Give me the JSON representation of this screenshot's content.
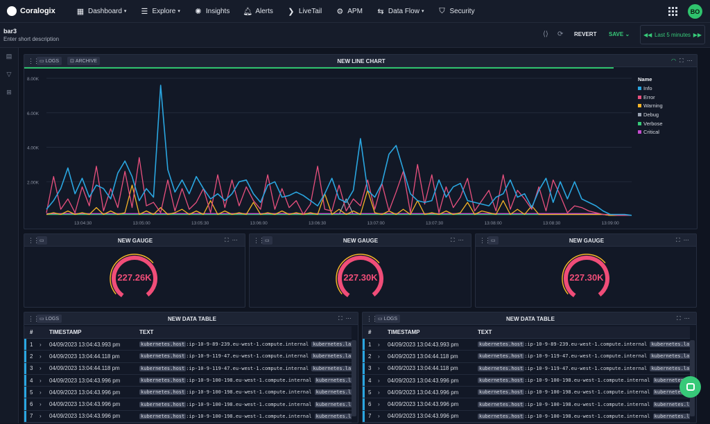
{
  "app": {
    "logo": "Coralogix"
  },
  "nav": [
    {
      "label": "Dashboard",
      "icon": "dashboard-icon",
      "caret": true
    },
    {
      "label": "Explore",
      "icon": "explore-icon",
      "caret": true
    },
    {
      "label": "Insights",
      "icon": "insights-icon",
      "caret": false
    },
    {
      "label": "Alerts",
      "icon": "bell-icon",
      "caret": false
    },
    {
      "label": "LiveTail",
      "icon": "livetail-icon",
      "caret": false
    },
    {
      "label": "APM",
      "icon": "apm-icon",
      "caret": false
    },
    {
      "label": "Data Flow",
      "icon": "dataflow-icon",
      "caret": true
    },
    {
      "label": "Security",
      "icon": "shield-icon",
      "caret": false
    }
  ],
  "user": {
    "initials": "BO"
  },
  "dashboard": {
    "title": "bar3",
    "description": "Enter short description"
  },
  "toolbar": {
    "revert": "REVERT",
    "save": "SAVE",
    "time_range": "Last 5 minutes"
  },
  "line_chart": {
    "title": "NEW LINE CHART",
    "tags": [
      "LOGS",
      "ARCHIVE"
    ],
    "chart_data": {
      "type": "line",
      "ylim": [
        0,
        8000
      ],
      "yticks": [
        "8.00K",
        "6.00K",
        "4.00K",
        "2.00K"
      ],
      "xticks": [
        "13:04:30",
        "13:05:00",
        "13:05:30",
        "13:06:00",
        "13:06:30",
        "13:07:00",
        "13:07:30",
        "13:08:00",
        "13:08:30",
        "13:09:00"
      ],
      "legend_title": "Name",
      "legend_position": "right",
      "grid": true,
      "series": [
        {
          "name": "Info",
          "color": "#2aa6e0",
          "values": [
            400,
            900,
            1600,
            2800,
            1300,
            2200,
            1100,
            1800,
            1600,
            1000,
            2500,
            3200,
            2300,
            900,
            1600,
            1100,
            7600,
            2700,
            1400,
            2100,
            1300,
            2300,
            1600,
            1000,
            1300,
            900,
            1300,
            2000,
            2100,
            1300,
            800,
            1800,
            2000,
            1100,
            1200,
            1400,
            1200,
            900,
            600,
            1300,
            2200,
            1000,
            800,
            1500,
            4500,
            1500,
            1100,
            1900,
            3600,
            4100,
            2700,
            1300,
            900,
            800,
            900,
            2100,
            1100,
            1700,
            1900,
            900,
            800,
            700,
            600,
            1100,
            1300,
            2100,
            1100,
            1300,
            500,
            1500,
            2200,
            800,
            2000,
            1000,
            2000,
            1000,
            800,
            600,
            300,
            100,
            100,
            100,
            50
          ]
        },
        {
          "name": "Error",
          "color": "#e8507e",
          "values": [
            200,
            2300,
            400,
            1000,
            200,
            1700,
            600,
            2900,
            300,
            1600,
            500,
            2600,
            500,
            3400,
            600,
            800,
            200,
            2100,
            300,
            1600,
            400,
            800,
            1600,
            200,
            2400,
            500,
            2100,
            600,
            1700,
            900,
            400,
            2400,
            400,
            1600,
            500,
            900,
            100,
            700,
            2900,
            400,
            300,
            1800,
            300,
            1000,
            600,
            2100,
            400,
            1900,
            300,
            1400,
            2600,
            200,
            3000,
            700,
            2400,
            200,
            1700,
            500,
            1100,
            2200,
            300,
            900,
            1500,
            300,
            2400,
            400,
            1500,
            1000,
            400,
            1700,
            300,
            2100,
            1200,
            200,
            600,
            500,
            300,
            200,
            100,
            100,
            50,
            50,
            50
          ]
        },
        {
          "name": "Warning",
          "color": "#f5b428",
          "values": [
            100,
            200,
            100,
            300,
            100,
            200,
            100,
            500,
            100,
            300,
            100,
            200,
            1800,
            100,
            300,
            100,
            500,
            100,
            200,
            400,
            100,
            300,
            100,
            900,
            100,
            300,
            100,
            200,
            100,
            800,
            100,
            200,
            100,
            300,
            100,
            200,
            100,
            200,
            100,
            1300,
            100,
            400,
            100,
            300,
            100,
            1500,
            200,
            100,
            300,
            100,
            400,
            100,
            900,
            100,
            200,
            100,
            300,
            100,
            200,
            800,
            100,
            300,
            200,
            100,
            900,
            100,
            400,
            100,
            600,
            100,
            100,
            100,
            100,
            100,
            100,
            100,
            100,
            100,
            100,
            50,
            50,
            50,
            50
          ]
        },
        {
          "name": "Debug",
          "color": "#9aa3b2",
          "values": [
            100,
            100,
            100,
            100,
            100,
            100,
            100,
            100,
            100,
            100,
            100,
            100,
            100,
            100,
            100,
            100,
            100,
            100,
            100,
            100,
            100,
            100,
            100,
            100,
            100,
            100,
            100,
            100,
            100,
            100,
            100,
            100,
            100,
            100,
            100,
            100,
            100,
            100,
            100,
            100,
            100,
            100,
            1000,
            100,
            100,
            100,
            100,
            100,
            100,
            100,
            100,
            100,
            100,
            100,
            100,
            100,
            100,
            100,
            100,
            100,
            100,
            100,
            100,
            100,
            100,
            100,
            100,
            100,
            100,
            100,
            100,
            100,
            100,
            100,
            100,
            100,
            100,
            100,
            100,
            50,
            50,
            50,
            50
          ]
        },
        {
          "name": "Verbose",
          "color": "#37c978",
          "values": [
            100,
            100,
            100,
            100,
            100,
            100,
            100,
            100,
            100,
            100,
            100,
            100,
            100,
            100,
            100,
            100,
            100,
            100,
            100,
            100,
            100,
            100,
            100,
            100,
            100,
            100,
            100,
            100,
            100,
            100,
            100,
            100,
            100,
            100,
            100,
            100,
            100,
            100,
            100,
            100,
            100,
            100,
            100,
            100,
            100,
            100,
            100,
            100,
            100,
            100,
            100,
            100,
            100,
            100,
            100,
            100,
            100,
            100,
            100,
            100,
            100,
            100,
            100,
            100,
            100,
            100,
            100,
            100,
            100,
            100,
            100,
            100,
            100,
            100,
            100,
            100,
            100,
            100,
            100,
            50,
            50,
            50,
            50
          ]
        },
        {
          "name": "Critical",
          "color": "#c54bcf",
          "values": [
            150,
            150,
            150,
            150,
            150,
            150,
            150,
            150,
            150,
            150,
            150,
            150,
            150,
            150,
            150,
            150,
            150,
            150,
            150,
            150,
            150,
            150,
            150,
            150,
            150,
            150,
            150,
            150,
            150,
            150,
            150,
            150,
            150,
            150,
            150,
            150,
            150,
            150,
            150,
            150,
            150,
            150,
            150,
            150,
            150,
            150,
            150,
            150,
            150,
            150,
            150,
            150,
            150,
            150,
            150,
            150,
            150,
            150,
            150,
            150,
            150,
            150,
            150,
            150,
            150,
            150,
            150,
            150,
            150,
            150,
            150,
            150,
            150,
            150,
            150,
            150,
            150,
            150,
            100,
            50,
            50,
            50,
            50
          ]
        }
      ]
    }
  },
  "gauges": [
    {
      "title": "NEW GAUGE",
      "value": "227.26K"
    },
    {
      "title": "NEW GAUGE",
      "value": "227.30K"
    },
    {
      "title": "NEW GAUGE",
      "value": "227.30K"
    }
  ],
  "tables": [
    {
      "title": "NEW DATA TABLE",
      "tag": "LOGS",
      "columns": [
        "#",
        "TIMESTAMP",
        "TEXT"
      ],
      "rows": [
        {
          "n": "1",
          "ts": "04/09/2023 13:04:43.993 pm",
          "k1": "kubernetes.host",
          "v1": ":ip-10-9-89-239.eu-west-1.compute.internal",
          "k2": "kubernetes.la"
        },
        {
          "n": "2",
          "ts": "04/09/2023 13:04:44.118 pm",
          "k1": "kubernetes.host",
          "v1": ":ip-10-9-119-47.eu-west-1.compute.internal",
          "k2": "kubernetes.la"
        },
        {
          "n": "3",
          "ts": "04/09/2023 13:04:44.118 pm",
          "k1": "kubernetes.host",
          "v1": ":ip-10-9-119-47.eu-west-1.compute.internal",
          "k2": "kubernetes.la"
        },
        {
          "n": "4",
          "ts": "04/09/2023 13:04:43.996 pm",
          "k1": "kubernetes.host",
          "v1": ":ip-10-9-100-198.eu-west-1.compute.internal",
          "k2": "kubernetes.l"
        },
        {
          "n": "5",
          "ts": "04/09/2023 13:04:43.996 pm",
          "k1": "kubernetes.host",
          "v1": ":ip-10-9-100-198.eu-west-1.compute.internal",
          "k2": "kubernetes.l"
        },
        {
          "n": "6",
          "ts": "04/09/2023 13:04:43.996 pm",
          "k1": "kubernetes.host",
          "v1": ":ip-10-9-100-198.eu-west-1.compute.internal",
          "k2": "kubernetes.l"
        },
        {
          "n": "7",
          "ts": "04/09/2023 13:04:43.996 pm",
          "k1": "kubernetes.host",
          "v1": ":ip-10-9-100-198.eu-west-1.compute.internal",
          "k2": "kubernetes.l"
        }
      ]
    },
    {
      "title": "NEW DATA TABLE",
      "tag": "LOGS",
      "columns": [
        "#",
        "TIMESTAMP",
        "TEXT"
      ],
      "rows": [
        {
          "n": "1",
          "ts": "04/09/2023 13:04:43.993 pm",
          "k1": "kubernetes.host",
          "v1": ":ip-10-9-89-239.eu-west-1.compute.internal",
          "k2": "kubernetes.la"
        },
        {
          "n": "2",
          "ts": "04/09/2023 13:04:44.118 pm",
          "k1": "kubernetes.host",
          "v1": ":ip-10-9-119-47.eu-west-1.compute.internal",
          "k2": "kubernetes.la"
        },
        {
          "n": "3",
          "ts": "04/09/2023 13:04:44.118 pm",
          "k1": "kubernetes.host",
          "v1": ":ip-10-9-119-47.eu-west-1.compute.internal",
          "k2": "kubernetes.la"
        },
        {
          "n": "4",
          "ts": "04/09/2023 13:04:43.996 pm",
          "k1": "kubernetes.host",
          "v1": ":ip-10-9-100-198.eu-west-1.compute.internal",
          "k2": "kubernetes.l"
        },
        {
          "n": "5",
          "ts": "04/09/2023 13:04:43.996 pm",
          "k1": "kubernetes.host",
          "v1": ":ip-10-9-100-198.eu-west-1.compute.internal",
          "k2": "kubernetes.l"
        },
        {
          "n": "6",
          "ts": "04/09/2023 13:04:43.996 pm",
          "k1": "kubernetes.host",
          "v1": ":ip-10-9-100-198.eu-west-1.compute.internal",
          "k2": "kubernetes.l"
        },
        {
          "n": "7",
          "ts": "04/09/2023 13:04:43.996 pm",
          "k1": "kubernetes.host",
          "v1": ":ip-10-9-100-198.eu-west-1.compute.internal",
          "k2": "kubernetes.l"
        }
      ]
    }
  ]
}
